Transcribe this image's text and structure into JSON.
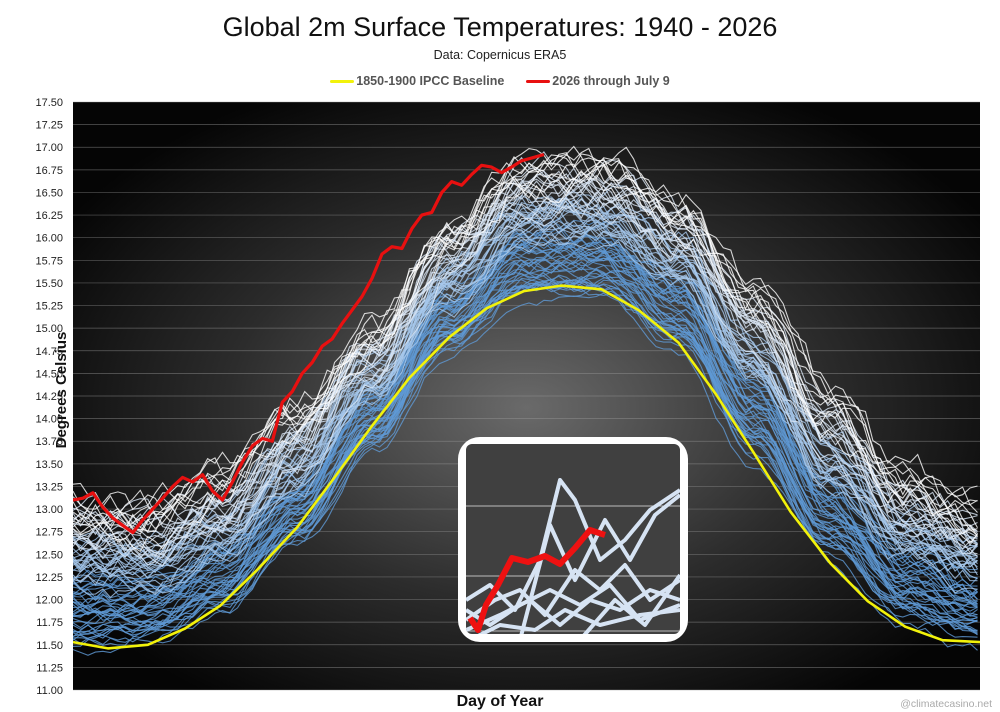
{
  "chart_data": {
    "type": "line",
    "title": "Global 2m Surface Temperatures: 1940 - 2026",
    "subtitle": "Data: Copernicus ERA5",
    "xlabel": "Day of Year",
    "ylabel": "Degrees Celsius",
    "xlim": [
      1,
      365
    ],
    "ylim": [
      11.0,
      17.5
    ],
    "y_ticks": [
      "11.00",
      "11.25",
      "11.50",
      "11.75",
      "12.00",
      "12.25",
      "12.50",
      "12.75",
      "13.00",
      "13.25",
      "13.50",
      "13.75",
      "14.00",
      "14.25",
      "14.50",
      "14.75",
      "15.00",
      "15.25",
      "15.50",
      "15.75",
      "16.00",
      "16.25",
      "16.50",
      "16.75",
      "17.00",
      "17.25",
      "17.50"
    ],
    "grid": true,
    "legend_position": "top",
    "background": "dark radial gradient",
    "colors": {
      "baseline": "#f2f20a",
      "current_year": "#e81010",
      "historical_years": "#5b9bd5",
      "recent_years": "#ffffff"
    },
    "series": [
      {
        "name": "1850-1900 IPCC Baseline",
        "x": [
          1,
          15,
          31,
          46,
          60,
          75,
          91,
          106,
          121,
          136,
          152,
          167,
          182,
          197,
          213,
          228,
          244,
          259,
          274,
          289,
          305,
          320,
          335,
          350,
          365
        ],
        "values": [
          11.53,
          11.46,
          11.5,
          11.68,
          11.93,
          12.33,
          12.8,
          13.35,
          13.92,
          14.45,
          14.9,
          15.22,
          15.41,
          15.47,
          15.43,
          15.2,
          14.84,
          14.27,
          13.63,
          12.97,
          12.4,
          11.98,
          11.7,
          11.55,
          11.53
        ]
      },
      {
        "name": "2026 through July 9",
        "x": [
          1,
          5,
          9,
          13,
          17,
          21,
          25,
          29,
          33,
          37,
          41,
          45,
          49,
          53,
          57,
          61,
          65,
          69,
          73,
          77,
          81,
          85,
          89,
          93,
          97,
          101,
          105,
          109,
          113,
          117,
          121,
          125,
          129,
          133,
          137,
          141,
          145,
          149,
          153,
          157,
          161,
          165,
          169,
          173,
          177,
          181,
          185,
          190
        ],
        "values": [
          13.1,
          13.12,
          13.18,
          13.02,
          12.9,
          12.82,
          12.74,
          12.88,
          13.0,
          13.12,
          13.25,
          13.35,
          13.3,
          13.38,
          13.2,
          13.1,
          13.3,
          13.52,
          13.7,
          13.78,
          13.75,
          14.18,
          14.3,
          14.5,
          14.62,
          14.8,
          14.88,
          15.05,
          15.2,
          15.35,
          15.55,
          15.82,
          15.9,
          15.88,
          16.1,
          16.25,
          16.28,
          16.5,
          16.62,
          16.58,
          16.7,
          16.8,
          16.78,
          16.72,
          16.78,
          16.85,
          16.88,
          16.92
        ]
      }
    ],
    "historical_years_note": "86 annual series (1940-2025) drawn as a shaded band of light blue and white lines",
    "historical_envelope": {
      "x": [
        1,
        31,
        60,
        91,
        121,
        152,
        182,
        213,
        244,
        274,
        305,
        335,
        365
      ],
      "low": [
        11.4,
        11.45,
        11.8,
        12.55,
        13.6,
        14.7,
        15.3,
        15.3,
        14.7,
        13.5,
        12.4,
        11.7,
        11.45
      ],
      "high": [
        13.3,
        13.15,
        13.5,
        14.2,
        15.1,
        16.25,
        16.95,
        16.95,
        16.6,
        15.6,
        14.4,
        13.5,
        13.2
      ]
    }
  },
  "legend": {
    "items": [
      {
        "label": "1850-1900 IPCC Baseline",
        "color": "#f2f20a"
      },
      {
        "label": "2026 through July 9",
        "color": "#e81010"
      }
    ]
  },
  "watermark": "@climatecasino.net"
}
